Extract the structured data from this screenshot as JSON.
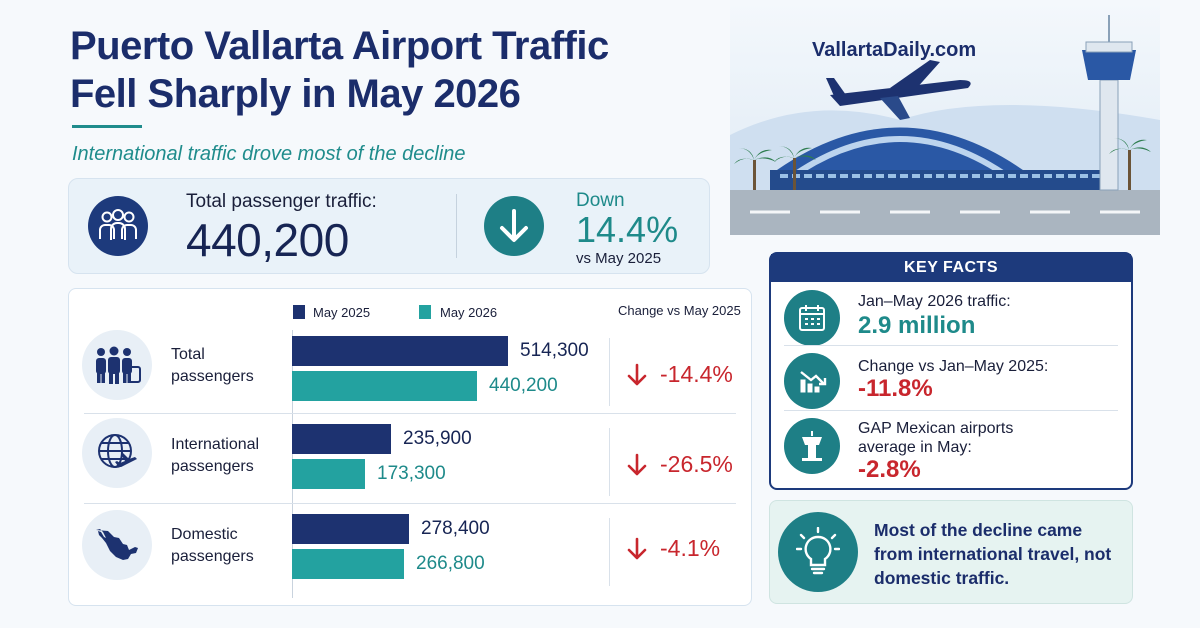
{
  "headline": {
    "line1": "Puerto Vallarta Airport Traffic",
    "line2": "Fell Sharply in May 2026",
    "subtitle": "International traffic drove most of the decline"
  },
  "summary": {
    "label": "Total passenger traffic:",
    "value": "440,200",
    "down_word": "Down",
    "down_pct": "14.4%",
    "down_vs": "vs May 2025"
  },
  "brand": "VallartaDaily.com",
  "chart_data": {
    "type": "bar",
    "orientation": "horizontal",
    "categories": [
      "Total passengers",
      "International passengers",
      "Domestic passengers"
    ],
    "category_lines": [
      [
        "Total",
        "passengers"
      ],
      [
        "International",
        "passengers"
      ],
      [
        "Domestic",
        "passengers"
      ]
    ],
    "series": [
      {
        "name": "May 2025",
        "color": "#1d3270",
        "values": [
          514300,
          235900,
          278400
        ],
        "labels": [
          "514,300",
          "235,900",
          "278,400"
        ]
      },
      {
        "name": "May 2026",
        "color": "#23a2a0",
        "values": [
          440200,
          173300,
          266800
        ],
        "labels": [
          "440,200",
          "173,300",
          "266,800"
        ]
      }
    ],
    "change_header": "Change vs May 2025",
    "changes": [
      "-14.4%",
      "-26.5%",
      "-4.1%"
    ],
    "xlim": [
      0,
      514300
    ]
  },
  "key_facts": {
    "header": "KEY FACTS",
    "items": [
      {
        "icon": "calendar-icon",
        "label_lines": [
          "Jan–May 2026 traffic:"
        ],
        "value": "2.9 million",
        "color": "#1e8a8a"
      },
      {
        "icon": "chart-down-icon",
        "label_lines": [
          "Change vs Jan–May 2025:"
        ],
        "value": "-11.8%",
        "color": "#c8262d"
      },
      {
        "icon": "control-tower-icon",
        "label_lines": [
          "GAP Mexican airports",
          "average in May:"
        ],
        "value": "-2.8%",
        "color": "#c8262d"
      }
    ]
  },
  "note": {
    "icon": "lightbulb-icon",
    "text": "Most of the decline came from international travel, not domestic traffic."
  }
}
